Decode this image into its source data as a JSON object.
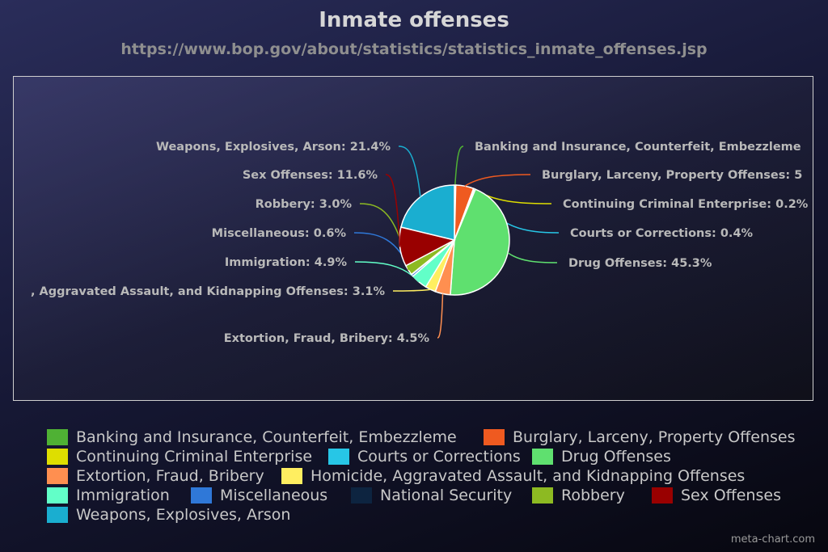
{
  "chart_data": {
    "type": "pie",
    "title": "Inmate offenses",
    "subtitle": "https://www.bop.gov/about/statistics/statistics_inmate_offenses.jsp",
    "slices": [
      {
        "name": "Banking and Insurance, Counterfeit, Embezzlement",
        "value": 0.4,
        "label": "Banking and Insurance, Counterfeit, Embezzleme",
        "color": "#4fb134"
      },
      {
        "name": "Burglary, Larceny, Property Offenses",
        "value": 5.3,
        "label": "Burglary, Larceny, Property Offenses: 5",
        "color": "#ef5a20"
      },
      {
        "name": "Continuing Criminal Enterprise",
        "value": 0.2,
        "label": "Continuing Criminal Enterprise: 0.2%",
        "color": "#dede00"
      },
      {
        "name": "Courts or Corrections",
        "value": 0.4,
        "label": "Courts or Corrections: 0.4%",
        "color": "#27c6e6"
      },
      {
        "name": "Drug Offenses",
        "value": 45.3,
        "label": "Drug Offenses: 45.3%",
        "color": "#5fe06f"
      },
      {
        "name": "Extortion, Fraud, Bribery",
        "value": 4.5,
        "label": "Extortion, Fraud, Bribery: 4.5%",
        "color": "#ff8f50"
      },
      {
        "name": "Homicide, Aggravated Assault, and Kidnapping Offenses",
        "value": 3.1,
        "label": ", Aggravated Assault, and Kidnapping Offenses: 3.1%",
        "color": "#ffee60"
      },
      {
        "name": "Immigration",
        "value": 4.9,
        "label": "Immigration: 4.9%",
        "color": "#62ffc8"
      },
      {
        "name": "Miscellaneous",
        "value": 0.6,
        "label": "Miscellaneous: 0.6%",
        "color": "#2f78d8"
      },
      {
        "name": "National Security",
        "value": 0.1,
        "label": "",
        "color": "#0d2440"
      },
      {
        "name": "Robbery",
        "value": 3.0,
        "label": "Robbery: 3.0%",
        "color": "#8dba22"
      },
      {
        "name": "Sex Offenses",
        "value": 11.6,
        "label": "Sex Offenses: 11.6%",
        "color": "#990000"
      },
      {
        "name": "Weapons, Explosives, Arson",
        "value": 21.4,
        "label": "Weapons, Explosives, Arson: 21.4%",
        "color": "#1aaed0"
      }
    ],
    "legend": [
      {
        "label": "Banking and Insurance, Counterfeit, Embezzleme",
        "color": "#4fb134"
      },
      {
        "label": "Burglary, Larceny, Property Offenses",
        "color": "#ef5a20"
      },
      {
        "label": "Continuing Criminal Enterprise",
        "color": "#dede00"
      },
      {
        "label": "Courts or Corrections",
        "color": "#27c6e6"
      },
      {
        "label": "Drug Offenses",
        "color": "#5fe06f"
      },
      {
        "label": "Extortion, Fraud, Bribery",
        "color": "#ff8f50"
      },
      {
        "label": "Homicide, Aggravated Assault, and Kidnapping Offenses",
        "color": "#ffee60"
      },
      {
        "label": "Immigration",
        "color": "#62ffc8"
      },
      {
        "label": "Miscellaneous",
        "color": "#2f78d8"
      },
      {
        "label": "National Security",
        "color": "#0d2440"
      },
      {
        "label": "Robbery",
        "color": "#8dba22"
      },
      {
        "label": "Sex Offenses",
        "color": "#990000"
      },
      {
        "label": "Weapons, Explosives, Arson",
        "color": "#1aaed0"
      }
    ],
    "legend_position": "bottom"
  },
  "footer": "meta-chart.com"
}
